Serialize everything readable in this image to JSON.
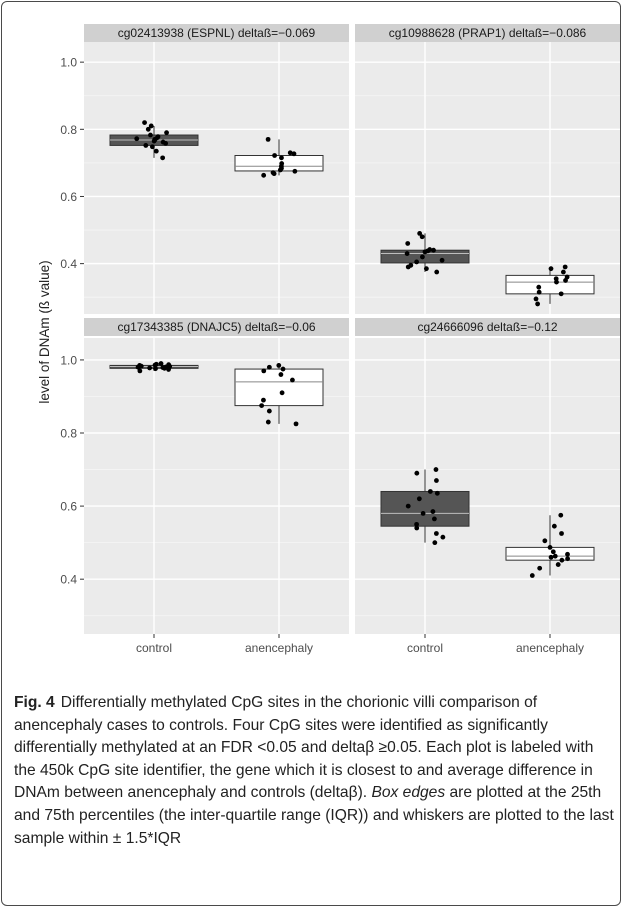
{
  "chart_data": {
    "type": "box",
    "ylabel": "level of DNAm (ß value)",
    "categories": [
      "control",
      "anencephaly"
    ],
    "shared_y": true,
    "ylim": [
      0.25,
      1.06
    ],
    "yticks": [
      0.4,
      0.6,
      0.8,
      1.0
    ],
    "ytick_labels": [
      "0.4",
      "0.6",
      "0.8",
      "1.0"
    ],
    "grid": true,
    "colors": {
      "control": "#555555",
      "anencephaly": "#ffffff",
      "panel_bg": "#ebebeb",
      "strip": "#d0d0d0"
    },
    "panels": [
      {
        "title": "cg02413938 (ESPNL) deltaß=−0.069",
        "boxes": [
          {
            "group": "control",
            "q1": 0.752,
            "median": 0.768,
            "q3": 0.783,
            "whisker_low": 0.715,
            "whisker_high": 0.81,
            "points": [
              0.715,
              0.735,
              0.748,
              0.752,
              0.758,
              0.762,
              0.765,
              0.768,
              0.77,
              0.772,
              0.775,
              0.778,
              0.783,
              0.79,
              0.8,
              0.81,
              0.82
            ]
          },
          {
            "group": "anencephaly",
            "q1": 0.676,
            "median": 0.69,
            "q3": 0.722,
            "whisker_low": 0.663,
            "whisker_high": 0.77,
            "points": [
              0.663,
              0.668,
              0.671,
              0.675,
              0.679,
              0.684,
              0.69,
              0.698,
              0.715,
              0.722,
              0.727,
              0.73,
              0.77
            ]
          }
        ]
      },
      {
        "title": "cg10988628 (PRAP1) deltaß=−0.086",
        "boxes": [
          {
            "group": "control",
            "q1": 0.402,
            "median": 0.43,
            "q3": 0.44,
            "whisker_low": 0.375,
            "whisker_high": 0.49,
            "points": [
              0.375,
              0.385,
              0.39,
              0.395,
              0.405,
              0.41,
              0.42,
              0.43,
              0.435,
              0.438,
              0.44,
              0.442,
              0.46,
              0.48,
              0.49
            ]
          },
          {
            "group": "anencephaly",
            "q1": 0.31,
            "median": 0.345,
            "q3": 0.365,
            "whisker_low": 0.28,
            "whisker_high": 0.39,
            "points": [
              0.28,
              0.295,
              0.31,
              0.315,
              0.33,
              0.345,
              0.35,
              0.355,
              0.36,
              0.375,
              0.385,
              0.39
            ]
          }
        ]
      },
      {
        "title": "cg17343385 (DNAJC5) deltaß=−0.06",
        "boxes": [
          {
            "group": "control",
            "q1": 0.977,
            "median": 0.982,
            "q3": 0.985,
            "whisker_low": 0.97,
            "whisker_high": 0.99,
            "points": [
              0.97,
              0.974,
              0.976,
              0.977,
              0.978,
              0.979,
              0.98,
              0.981,
              0.982,
              0.983,
              0.984,
              0.985,
              0.986,
              0.987,
              0.988,
              0.99
            ]
          },
          {
            "group": "anencephaly",
            "q1": 0.875,
            "median": 0.94,
            "q3": 0.975,
            "whisker_low": 0.825,
            "whisker_high": 0.985,
            "points": [
              0.825,
              0.83,
              0.86,
              0.875,
              0.89,
              0.91,
              0.945,
              0.96,
              0.97,
              0.975,
              0.98,
              0.985
            ]
          }
        ]
      },
      {
        "title": "cg24666096 deltaß=−0.12",
        "boxes": [
          {
            "group": "control",
            "q1": 0.545,
            "median": 0.58,
            "q3": 0.64,
            "whisker_low": 0.5,
            "whisker_high": 0.7,
            "points": [
              0.5,
              0.515,
              0.525,
              0.54,
              0.55,
              0.565,
              0.58,
              0.585,
              0.6,
              0.62,
              0.635,
              0.64,
              0.67,
              0.69,
              0.7
            ]
          },
          {
            "group": "anencephaly",
            "q1": 0.452,
            "median": 0.463,
            "q3": 0.487,
            "whisker_low": 0.41,
            "whisker_high": 0.575,
            "points": [
              0.41,
              0.43,
              0.44,
              0.452,
              0.456,
              0.46,
              0.463,
              0.468,
              0.475,
              0.487,
              0.505,
              0.525,
              0.545,
              0.575
            ]
          }
        ]
      }
    ]
  },
  "caption": {
    "label": "Fig. 4",
    "text_1": "Differentially methylated CpG sites in the chorionic villi comparison of anencephaly cases to controls. Four CpG sites were identified as significantly differentially methylated at an FDR <0.05 and deltaβ ≥0.05. Each plot is labeled with the 450k CpG site identifier, the gene which it is closest to and average difference in DNAm between anencephaly and controls (deltaβ). ",
    "italic": "Box edges",
    "text_2": " are plotted at the 25th and 75th percentiles (the inter-quartile range (IQR)) and whiskers are plotted to the last sample within ± 1.5*IQR"
  }
}
